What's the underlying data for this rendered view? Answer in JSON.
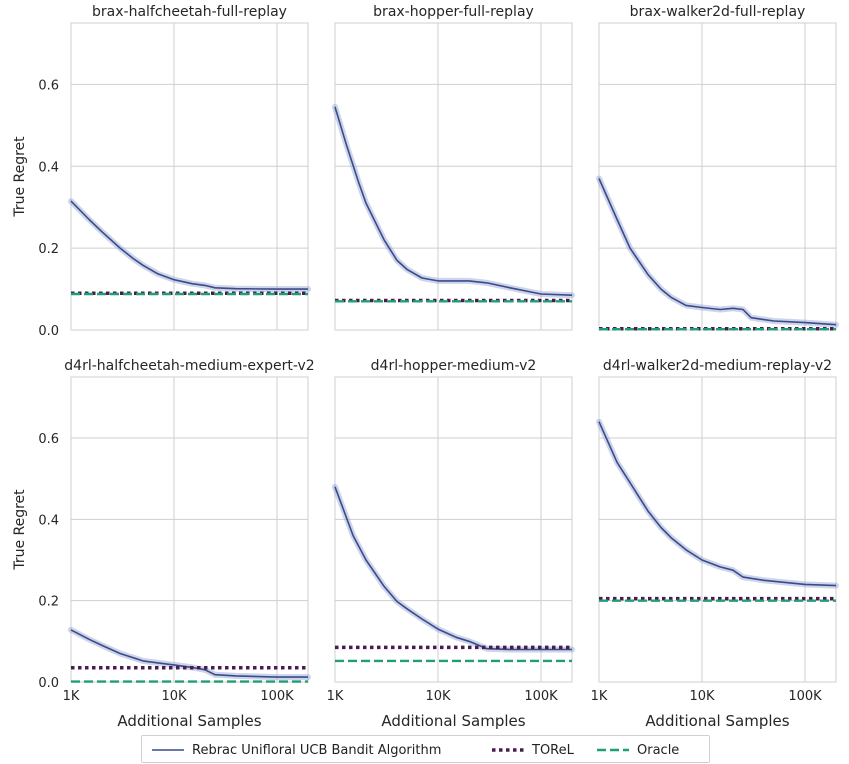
{
  "colors": {
    "rebrac": "#3b4a8c",
    "rebrac_band": "#8fa1cf",
    "torel": "#4a1c4d",
    "oracle": "#1f9e78",
    "grid": "#cfcfcf",
    "text": "#262626"
  },
  "legend": {
    "rebrac": "Rebrac Unifloral UCB Bandit Algorithm",
    "torel": "TOReL",
    "oracle": "Oracle"
  },
  "chart_data": [
    {
      "type": "line",
      "title": "brax-halfcheetah-full-replay",
      "ylabel": "True Regret",
      "xlabel": "",
      "x_scale": "log",
      "xlim": [
        1000,
        200000
      ],
      "ylim": [
        0,
        0.75
      ],
      "yticks": [
        0.0,
        0.2,
        0.4,
        0.6
      ],
      "ytick_labels": [
        "0.0",
        "0.2",
        "0.4",
        "0.6"
      ],
      "xticks": [
        1000,
        10000,
        100000
      ],
      "xtick_labels": [],
      "series": [
        {
          "name": "Rebrac Unifloral UCB Bandit Algorithm",
          "style": "solid",
          "x": [
            1000,
            1500,
            2000,
            3000,
            4000,
            5000,
            7000,
            10000,
            15000,
            20000,
            25000,
            40000,
            100000,
            200000
          ],
          "y": [
            0.315,
            0.27,
            0.24,
            0.2,
            0.175,
            0.158,
            0.137,
            0.123,
            0.113,
            0.109,
            0.103,
            0.101,
            0.1,
            0.1
          ]
        },
        {
          "name": "TOReL",
          "style": "dotted",
          "x": [
            1000,
            200000
          ],
          "y": [
            0.09,
            0.09
          ]
        },
        {
          "name": "Oracle",
          "style": "dashed",
          "x": [
            1000,
            200000
          ],
          "y": [
            0.088,
            0.088
          ]
        }
      ]
    },
    {
      "type": "line",
      "title": "brax-hopper-full-replay",
      "ylabel": "",
      "xlabel": "",
      "x_scale": "log",
      "xlim": [
        1000,
        200000
      ],
      "ylim": [
        0,
        0.75
      ],
      "yticks": [
        0.0,
        0.2,
        0.4,
        0.6
      ],
      "ytick_labels": [],
      "xticks": [
        1000,
        10000,
        100000
      ],
      "xtick_labels": [],
      "series": [
        {
          "name": "Rebrac Unifloral UCB Bandit Algorithm",
          "style": "solid",
          "x": [
            1000,
            1300,
            1700,
            2000,
            3000,
            4000,
            5000,
            7000,
            10000,
            15000,
            20000,
            30000,
            50000,
            100000,
            200000
          ],
          "y": [
            0.545,
            0.45,
            0.36,
            0.31,
            0.22,
            0.17,
            0.148,
            0.127,
            0.12,
            0.12,
            0.12,
            0.115,
            0.103,
            0.088,
            0.085
          ]
        },
        {
          "name": "TOReL",
          "style": "dotted",
          "x": [
            1000,
            200000
          ],
          "y": [
            0.072,
            0.072
          ]
        },
        {
          "name": "Oracle",
          "style": "dashed",
          "x": [
            1000,
            200000
          ],
          "y": [
            0.07,
            0.07
          ]
        }
      ]
    },
    {
      "type": "line",
      "title": "brax-walker2d-full-replay",
      "ylabel": "",
      "xlabel": "",
      "x_scale": "log",
      "xlim": [
        1000,
        200000
      ],
      "ylim": [
        0,
        0.75
      ],
      "yticks": [
        0.0,
        0.2,
        0.4,
        0.6
      ],
      "ytick_labels": [],
      "xticks": [
        1000,
        10000,
        100000
      ],
      "xtick_labels": [],
      "series": [
        {
          "name": "Rebrac Unifloral UCB Bandit Algorithm",
          "style": "solid",
          "x": [
            1000,
            1500,
            2000,
            3000,
            4000,
            5000,
            7000,
            10000,
            15000,
            20000,
            25000,
            30000,
            50000,
            100000,
            200000
          ],
          "y": [
            0.37,
            0.27,
            0.2,
            0.135,
            0.1,
            0.08,
            0.06,
            0.055,
            0.05,
            0.053,
            0.05,
            0.03,
            0.022,
            0.018,
            0.013
          ]
        },
        {
          "name": "TOReL",
          "style": "dotted",
          "x": [
            1000,
            200000
          ],
          "y": [
            0.003,
            0.003
          ]
        },
        {
          "name": "Oracle",
          "style": "dashed",
          "x": [
            1000,
            200000
          ],
          "y": [
            0.002,
            0.002
          ]
        }
      ]
    },
    {
      "type": "line",
      "title": "d4rl-halfcheetah-medium-expert-v2",
      "ylabel": "True Regret",
      "xlabel": "Additional Samples",
      "x_scale": "log",
      "xlim": [
        1000,
        200000
      ],
      "ylim": [
        0,
        0.75
      ],
      "yticks": [
        0.0,
        0.2,
        0.4,
        0.6
      ],
      "ytick_labels": [
        "0.0",
        "0.2",
        "0.4",
        "0.6"
      ],
      "xticks": [
        1000,
        10000,
        100000
      ],
      "xtick_labels": [
        "1K",
        "10K",
        "100K"
      ],
      "series": [
        {
          "name": "Rebrac Unifloral UCB Bandit Algorithm",
          "style": "solid",
          "x": [
            1000,
            1500,
            2000,
            3000,
            5000,
            7000,
            10000,
            15000,
            20000,
            25000,
            40000,
            100000,
            200000
          ],
          "y": [
            0.128,
            0.105,
            0.09,
            0.07,
            0.052,
            0.047,
            0.042,
            0.036,
            0.03,
            0.018,
            0.015,
            0.012,
            0.012
          ]
        },
        {
          "name": "TOReL",
          "style": "dotted",
          "x": [
            1000,
            200000
          ],
          "y": [
            0.035,
            0.035
          ]
        },
        {
          "name": "Oracle",
          "style": "dashed",
          "x": [
            1000,
            200000
          ],
          "y": [
            0.001,
            0.001
          ]
        }
      ]
    },
    {
      "type": "line",
      "title": "d4rl-hopper-medium-v2",
      "ylabel": "",
      "xlabel": "Additional Samples",
      "x_scale": "log",
      "xlim": [
        1000,
        200000
      ],
      "ylim": [
        0,
        0.75
      ],
      "yticks": [
        0.0,
        0.2,
        0.4,
        0.6
      ],
      "ytick_labels": [],
      "xticks": [
        1000,
        10000,
        100000
      ],
      "xtick_labels": [
        "1K",
        "10K",
        "100K"
      ],
      "series": [
        {
          "name": "Rebrac Unifloral UCB Bandit Algorithm",
          "style": "solid",
          "x": [
            1000,
            1500,
            2000,
            3000,
            4000,
            5000,
            7000,
            10000,
            15000,
            20000,
            30000,
            50000,
            100000,
            200000
          ],
          "y": [
            0.48,
            0.36,
            0.3,
            0.235,
            0.198,
            0.18,
            0.155,
            0.13,
            0.11,
            0.1,
            0.082,
            0.08,
            0.08,
            0.08
          ]
        },
        {
          "name": "TOReL",
          "style": "dotted",
          "x": [
            1000,
            200000
          ],
          "y": [
            0.085,
            0.085
          ]
        },
        {
          "name": "Oracle",
          "style": "dashed",
          "x": [
            1000,
            200000
          ],
          "y": [
            0.052,
            0.052
          ]
        }
      ]
    },
    {
      "type": "line",
      "title": "d4rl-walker2d-medium-replay-v2",
      "ylabel": "",
      "xlabel": "Additional Samples",
      "x_scale": "log",
      "xlim": [
        1000,
        200000
      ],
      "ylim": [
        0,
        0.75
      ],
      "yticks": [
        0.0,
        0.2,
        0.4,
        0.6
      ],
      "ytick_labels": [],
      "xticks": [
        1000,
        10000,
        100000
      ],
      "xtick_labels": [
        "1K",
        "10K",
        "100K"
      ],
      "series": [
        {
          "name": "Rebrac Unifloral UCB Bandit Algorithm",
          "style": "solid",
          "x": [
            1000,
            1500,
            2000,
            3000,
            4000,
            5000,
            7000,
            10000,
            15000,
            20000,
            25000,
            40000,
            100000,
            200000
          ],
          "y": [
            0.64,
            0.54,
            0.49,
            0.42,
            0.38,
            0.355,
            0.325,
            0.3,
            0.283,
            0.275,
            0.258,
            0.25,
            0.24,
            0.237
          ]
        },
        {
          "name": "TOReL",
          "style": "dotted",
          "x": [
            1000,
            200000
          ],
          "y": [
            0.205,
            0.205
          ]
        },
        {
          "name": "Oracle",
          "style": "dashed",
          "x": [
            1000,
            200000
          ],
          "y": [
            0.2,
            0.2
          ]
        }
      ]
    }
  ]
}
